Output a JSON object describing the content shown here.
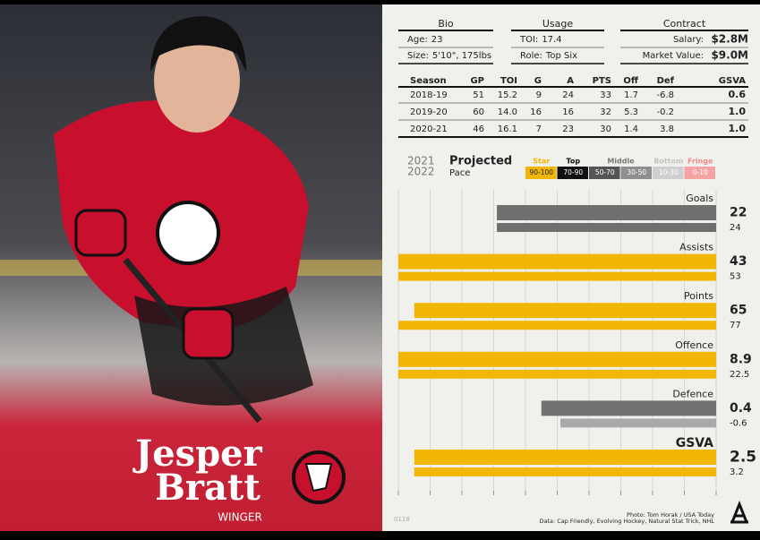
{
  "player": {
    "first_name": "Jesper",
    "last_name": "Bratt",
    "position": "WINGER"
  },
  "bio": {
    "title": "Bio",
    "rows": [
      {
        "label": "Age:",
        "value": 23
      },
      {
        "label": "Size:",
        "value": "5'10\", 175lbs"
      }
    ]
  },
  "usage": {
    "title": "Usage",
    "rows": [
      {
        "label": "TOI:",
        "value": 17.4
      },
      {
        "label": "Role:",
        "value": "Top Six"
      }
    ]
  },
  "contract": {
    "title": "Contract",
    "rows": [
      {
        "label": "Salary:",
        "value": "$2.8M"
      },
      {
        "label": "Market Value:",
        "value": "$9.0M"
      }
    ]
  },
  "stats": {
    "columns": [
      "Season",
      "GP",
      "TOI",
      "G",
      "A",
      "PTS",
      "Off",
      "Def",
      "GSVA"
    ],
    "rows": [
      [
        "2018-19",
        51,
        15.2,
        9,
        24,
        33,
        1.7,
        -6.8,
        0.6
      ],
      [
        "2019-20",
        60,
        "14.0",
        16,
        16,
        32,
        5.3,
        -0.2,
        "1.0"
      ],
      [
        "2020-21",
        46,
        16.1,
        7,
        23,
        30,
        1.4,
        3.8,
        "1.0"
      ]
    ]
  },
  "chart_data": {
    "type": "bar",
    "orientation": "horizontal",
    "title": "Projected",
    "subtitle": "Pace",
    "categories": [
      "Goals",
      "Assists",
      "Points",
      "Offence",
      "Defence",
      "GSVA"
    ],
    "series": [
      {
        "name": "2021",
        "values": [
          69,
          100,
          95,
          100,
          55,
          95
        ],
        "stat_values": [
          22,
          43,
          65,
          8.9,
          0.4,
          2.5
        ],
        "colors": [
          "#6f6f6f",
          "#f2b705",
          "#f2b705",
          "#f2b705",
          "#727272",
          "#f2b705"
        ]
      },
      {
        "name": "2022",
        "values": [
          69,
          100,
          100,
          100,
          49,
          95
        ],
        "stat_values": [
          24,
          53,
          77,
          22.5,
          -0.6,
          3.2
        ],
        "colors": [
          "#6f6f6f",
          "#f2b705",
          "#f2b705",
          "#f2b705",
          "#a9a9a9",
          "#f2b705"
        ]
      }
    ],
    "xlim": [
      100,
      0
    ],
    "xticks": [
      0,
      10,
      20,
      30,
      40,
      50,
      60,
      70,
      80,
      90,
      100
    ],
    "grid": true,
    "tiers": [
      {
        "name": "Star",
        "text_color": "#f2b705",
        "bands": [
          {
            "range": "90-100",
            "color": "#f2b705"
          }
        ]
      },
      {
        "name": "Top",
        "text_color": "#111111",
        "bands": [
          {
            "range": "70-90",
            "color": "#111111"
          }
        ]
      },
      {
        "name": "Middle",
        "text_color": "#777777",
        "bands": [
          {
            "range": "50-70",
            "color": "#555555"
          },
          {
            "range": "30-50",
            "color": "#8f8f8f"
          }
        ]
      },
      {
        "name": "Bottom",
        "text_color": "#c4c4c4",
        "bands": [
          {
            "range": "10-30",
            "color": "#cfcfcf"
          }
        ]
      },
      {
        "name": "Fringe",
        "text_color": "#f08a8a",
        "bands": [
          {
            "range": "0-10",
            "color": "#f5a3a3"
          }
        ]
      }
    ]
  },
  "footer": {
    "code": "0118",
    "credits": [
      "Photo: Tom Horak / USA Today",
      "Data: Cap Friendly, Evolving Hockey, Natural Stat Trick, NHL"
    ]
  }
}
